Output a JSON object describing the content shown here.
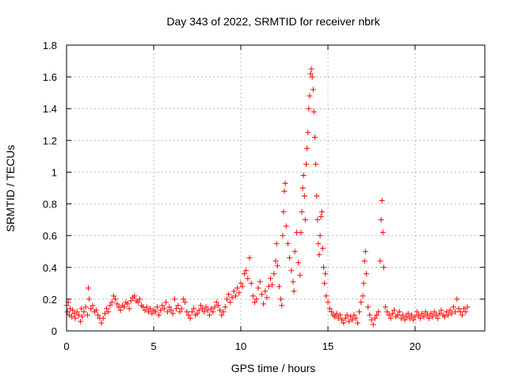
{
  "chart_data": {
    "type": "scatter",
    "title": "Day 343 of 2022, SRMTID for receiver nbrk",
    "xlabel": "GPS time / hours",
    "ylabel": "SRMTID / TECUs",
    "xlim": [
      0,
      24
    ],
    "ylim": [
      0,
      1.8
    ],
    "xticks": [
      0,
      5,
      10,
      15,
      20
    ],
    "yticks": [
      0,
      0.2,
      0.4,
      0.6,
      0.8,
      1,
      1.2,
      1.4,
      1.6,
      1.8
    ],
    "xtick_labels": [
      "0",
      "5",
      "10",
      "15",
      "20"
    ],
    "ytick_labels": [
      "0",
      "0.2",
      "0.4",
      "0.6",
      "0.8",
      "1",
      "1.2",
      "1.4",
      "1.6",
      "1.8"
    ],
    "grid": true,
    "marker": "+",
    "color": "#ff0000",
    "series": [
      {
        "name": "SRMTID",
        "points": [
          [
            0.0,
            0.16
          ],
          [
            0.05,
            0.12
          ],
          [
            0.1,
            0.18
          ],
          [
            0.15,
            0.1
          ],
          [
            0.2,
            0.14
          ],
          [
            0.3,
            0.09
          ],
          [
            0.35,
            0.13
          ],
          [
            0.45,
            0.11
          ],
          [
            0.5,
            0.08
          ],
          [
            0.6,
            0.12
          ],
          [
            0.7,
            0.1
          ],
          [
            0.8,
            0.06
          ],
          [
            0.85,
            0.14
          ],
          [
            0.9,
            0.09
          ],
          [
            1.0,
            0.12
          ],
          [
            1.1,
            0.15
          ],
          [
            1.2,
            0.1
          ],
          [
            1.25,
            0.27
          ],
          [
            1.3,
            0.2
          ],
          [
            1.4,
            0.14
          ],
          [
            1.5,
            0.16
          ],
          [
            1.6,
            0.12
          ],
          [
            1.7,
            0.13
          ],
          [
            1.8,
            0.1
          ],
          [
            1.9,
            0.08
          ],
          [
            2.0,
            0.05
          ],
          [
            2.1,
            0.08
          ],
          [
            2.2,
            0.11
          ],
          [
            2.3,
            0.14
          ],
          [
            2.4,
            0.12
          ],
          [
            2.5,
            0.16
          ],
          [
            2.6,
            0.18
          ],
          [
            2.7,
            0.22
          ],
          [
            2.8,
            0.2
          ],
          [
            2.9,
            0.17
          ],
          [
            3.0,
            0.15
          ],
          [
            3.1,
            0.13
          ],
          [
            3.2,
            0.16
          ],
          [
            3.3,
            0.15
          ],
          [
            3.4,
            0.18
          ],
          [
            3.5,
            0.17
          ],
          [
            3.6,
            0.14
          ],
          [
            3.7,
            0.19
          ],
          [
            3.8,
            0.21
          ],
          [
            3.9,
            0.22
          ],
          [
            4.0,
            0.19
          ],
          [
            4.1,
            0.18
          ],
          [
            4.2,
            0.2
          ],
          [
            4.3,
            0.16
          ],
          [
            4.4,
            0.15
          ],
          [
            4.5,
            0.13
          ],
          [
            4.6,
            0.15
          ],
          [
            4.7,
            0.12
          ],
          [
            4.8,
            0.14
          ],
          [
            4.9,
            0.11
          ],
          [
            5.0,
            0.13
          ],
          [
            5.1,
            0.12
          ],
          [
            5.2,
            0.15
          ],
          [
            5.3,
            0.1
          ],
          [
            5.4,
            0.13
          ],
          [
            5.5,
            0.16
          ],
          [
            5.6,
            0.14
          ],
          [
            5.7,
            0.18
          ],
          [
            5.8,
            0.12
          ],
          [
            5.9,
            0.15
          ],
          [
            6.0,
            0.13
          ],
          [
            6.1,
            0.11
          ],
          [
            6.2,
            0.2
          ],
          [
            6.3,
            0.14
          ],
          [
            6.4,
            0.16
          ],
          [
            6.5,
            0.12
          ],
          [
            6.6,
            0.14
          ],
          [
            6.7,
            0.2
          ],
          [
            6.8,
            0.18
          ],
          [
            6.9,
            0.12
          ],
          [
            7.0,
            0.1
          ],
          [
            7.1,
            0.08
          ],
          [
            7.2,
            0.12
          ],
          [
            7.3,
            0.14
          ],
          [
            7.4,
            0.1
          ],
          [
            7.5,
            0.11
          ],
          [
            7.6,
            0.13
          ],
          [
            7.7,
            0.16
          ],
          [
            7.8,
            0.14
          ],
          [
            7.9,
            0.12
          ],
          [
            8.0,
            0.15
          ],
          [
            8.1,
            0.13
          ],
          [
            8.2,
            0.1
          ],
          [
            8.3,
            0.14
          ],
          [
            8.4,
            0.12
          ],
          [
            8.5,
            0.15
          ],
          [
            8.6,
            0.18
          ],
          [
            8.7,
            0.16
          ],
          [
            8.8,
            0.13
          ],
          [
            8.9,
            0.1
          ],
          [
            9.0,
            0.12
          ],
          [
            9.1,
            0.15
          ],
          [
            9.2,
            0.2
          ],
          [
            9.3,
            0.23
          ],
          [
            9.4,
            0.18
          ],
          [
            9.5,
            0.21
          ],
          [
            9.6,
            0.25
          ],
          [
            9.7,
            0.22
          ],
          [
            9.8,
            0.27
          ],
          [
            9.9,
            0.24
          ],
          [
            10.0,
            0.3
          ],
          [
            10.1,
            0.28
          ],
          [
            10.2,
            0.36
          ],
          [
            10.3,
            0.38
          ],
          [
            10.4,
            0.33
          ],
          [
            10.5,
            0.46
          ],
          [
            10.6,
            0.3
          ],
          [
            10.7,
            0.22
          ],
          [
            10.8,
            0.18
          ],
          [
            10.9,
            0.2
          ],
          [
            11.0,
            0.27
          ],
          [
            11.1,
            0.31
          ],
          [
            11.2,
            0.23
          ],
          [
            11.3,
            0.17
          ],
          [
            11.4,
            0.25
          ],
          [
            11.5,
            0.21
          ],
          [
            11.6,
            0.28
          ],
          [
            11.7,
            0.33
          ],
          [
            11.8,
            0.29
          ],
          [
            11.9,
            0.36
          ],
          [
            12.0,
            0.44
          ],
          [
            12.05,
            0.55
          ],
          [
            12.1,
            0.41
          ],
          [
            12.2,
            0.28
          ],
          [
            12.3,
            0.2
          ],
          [
            12.35,
            0.16
          ],
          [
            12.4,
            0.6
          ],
          [
            12.45,
            0.75
          ],
          [
            12.5,
            0.88
          ],
          [
            12.55,
            0.93
          ],
          [
            12.6,
            0.66
          ],
          [
            12.7,
            0.55
          ],
          [
            12.8,
            0.46
          ],
          [
            12.9,
            0.38
          ],
          [
            13.0,
            0.31
          ],
          [
            13.05,
            0.25
          ],
          [
            13.1,
            0.5
          ],
          [
            13.2,
            0.62
          ],
          [
            13.3,
            0.43
          ],
          [
            13.4,
            0.35
          ],
          [
            13.45,
            0.62
          ],
          [
            13.5,
            0.75
          ],
          [
            13.55,
            0.9
          ],
          [
            13.6,
            0.98
          ],
          [
            13.65,
            0.85
          ],
          [
            13.7,
            0.7
          ],
          [
            13.75,
            1.05
          ],
          [
            13.8,
            1.15
          ],
          [
            13.85,
            1.25
          ],
          [
            13.9,
            1.4
          ],
          [
            13.95,
            1.48
          ],
          [
            14.0,
            1.62
          ],
          [
            14.05,
            1.65
          ],
          [
            14.1,
            1.6
          ],
          [
            14.15,
            1.52
          ],
          [
            14.2,
            1.38
          ],
          [
            14.25,
            1.22
          ],
          [
            14.3,
            1.05
          ],
          [
            14.35,
            0.85
          ],
          [
            14.4,
            0.7
          ],
          [
            14.45,
            0.55
          ],
          [
            14.5,
            0.48
          ],
          [
            14.55,
            0.6
          ],
          [
            14.6,
            0.72
          ],
          [
            14.65,
            0.75
          ],
          [
            14.7,
            0.52
          ],
          [
            14.75,
            0.4
          ],
          [
            14.8,
            0.3
          ],
          [
            14.85,
            0.36
          ],
          [
            14.9,
            0.22
          ],
          [
            15.0,
            0.18
          ],
          [
            15.1,
            0.14
          ],
          [
            15.2,
            0.12
          ],
          [
            15.3,
            0.1
          ],
          [
            15.4,
            0.09
          ],
          [
            15.5,
            0.11
          ],
          [
            15.6,
            0.08
          ],
          [
            15.7,
            0.1
          ],
          [
            15.8,
            0.07
          ],
          [
            15.9,
            0.05
          ],
          [
            16.0,
            0.08
          ],
          [
            16.1,
            0.1
          ],
          [
            16.2,
            0.06
          ],
          [
            16.3,
            0.09
          ],
          [
            16.4,
            0.07
          ],
          [
            16.5,
            0.1
          ],
          [
            16.6,
            0.08
          ],
          [
            16.7,
            0.05
          ],
          [
            16.8,
            0.12
          ],
          [
            16.9,
            0.18
          ],
          [
            17.0,
            0.22
          ],
          [
            17.05,
            0.3
          ],
          [
            17.1,
            0.44
          ],
          [
            17.15,
            0.5
          ],
          [
            17.2,
            0.36
          ],
          [
            17.3,
            0.15
          ],
          [
            17.4,
            0.1
          ],
          [
            17.5,
            0.07
          ],
          [
            17.6,
            0.04
          ],
          [
            17.7,
            0.08
          ],
          [
            17.8,
            0.1
          ],
          [
            17.9,
            0.12
          ],
          [
            18.0,
            0.44
          ],
          [
            18.05,
            0.7
          ],
          [
            18.1,
            0.82
          ],
          [
            18.15,
            0.62
          ],
          [
            18.2,
            0.4
          ],
          [
            18.3,
            0.15
          ],
          [
            18.4,
            0.12
          ],
          [
            18.5,
            0.1
          ],
          [
            18.6,
            0.08
          ],
          [
            18.7,
            0.11
          ],
          [
            18.8,
            0.13
          ],
          [
            18.9,
            0.09
          ],
          [
            19.0,
            0.1
          ],
          [
            19.1,
            0.12
          ],
          [
            19.2,
            0.08
          ],
          [
            19.3,
            0.1
          ],
          [
            19.4,
            0.07
          ],
          [
            19.5,
            0.09
          ],
          [
            19.6,
            0.11
          ],
          [
            19.7,
            0.08
          ],
          [
            19.8,
            0.1
          ],
          [
            19.9,
            0.07
          ],
          [
            20.0,
            0.09
          ],
          [
            20.1,
            0.12
          ],
          [
            20.2,
            0.1
          ],
          [
            20.3,
            0.08
          ],
          [
            20.4,
            0.11
          ],
          [
            20.5,
            0.09
          ],
          [
            20.6,
            0.12
          ],
          [
            20.7,
            0.1
          ],
          [
            20.8,
            0.08
          ],
          [
            20.9,
            0.11
          ],
          [
            21.0,
            0.09
          ],
          [
            21.1,
            0.12
          ],
          [
            21.2,
            0.1
          ],
          [
            21.3,
            0.08
          ],
          [
            21.4,
            0.11
          ],
          [
            21.5,
            0.13
          ],
          [
            21.6,
            0.1
          ],
          [
            21.7,
            0.09
          ],
          [
            21.8,
            0.12
          ],
          [
            21.9,
            0.1
          ],
          [
            22.0,
            0.13
          ],
          [
            22.1,
            0.11
          ],
          [
            22.2,
            0.15
          ],
          [
            22.3,
            0.12
          ],
          [
            22.4,
            0.2
          ],
          [
            22.5,
            0.14
          ],
          [
            22.6,
            0.12
          ],
          [
            22.7,
            0.1
          ],
          [
            22.8,
            0.14
          ],
          [
            22.9,
            0.12
          ],
          [
            23.0,
            0.15
          ]
        ]
      }
    ]
  }
}
